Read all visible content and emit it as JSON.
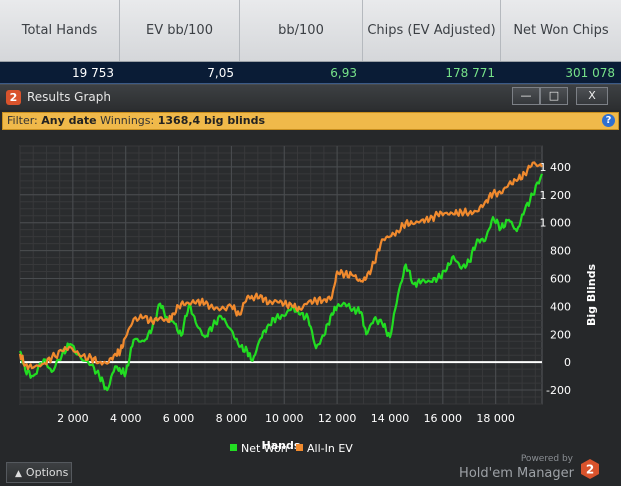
{
  "stats": {
    "headers": [
      "Total Hands",
      "EV bb/100",
      "bb/100",
      "Chips (EV Adjusted)",
      "Net Won Chips"
    ],
    "values": [
      "19 753",
      "7,05",
      "6,93",
      "178 771",
      "301 078"
    ]
  },
  "window": {
    "title": "Results Graph",
    "logo_glyph": "2",
    "minimize": "—",
    "maximize": "□",
    "close": "X"
  },
  "filter": {
    "label": "Filter:",
    "date": "Any date",
    "winnings_label": "Winnings:",
    "winnings_value": "1368,4 big blinds",
    "help": "?"
  },
  "bottom": {
    "options_label": "Options",
    "powered_by": "Powered by",
    "brand": "Hold'em Manager",
    "brand_logo_glyph": "2"
  },
  "colors": {
    "net_won": "#22dd22",
    "all_in_ev": "#f08a2e",
    "zero_line": "#ffffff",
    "grid": "#4a4d50",
    "plot_bg": "#2a2c2e"
  },
  "chart_data": {
    "type": "line",
    "xlabel": "Hands",
    "ylabel": "Big Blinds",
    "xlim": [
      0,
      19753
    ],
    "ylim": [
      -300,
      1550
    ],
    "x_ticks": [
      2000,
      4000,
      6000,
      8000,
      10000,
      12000,
      14000,
      16000,
      18000
    ],
    "x_tick_labels": [
      "2 000",
      "4 000",
      "6 000",
      "8 000",
      "10 000",
      "12 000",
      "14 000",
      "16 000",
      "18 000"
    ],
    "y_ticks": [
      -200,
      0,
      200,
      400,
      600,
      800,
      1000,
      1200,
      1400
    ],
    "y_tick_labels": [
      "-200",
      "0",
      "200",
      "400",
      "600",
      "800",
      "1 000",
      "1 200",
      "1 400"
    ],
    "grid": true,
    "legend_position": "bottom-center",
    "series": [
      {
        "name": "Net Won",
        "color": "#22dd22",
        "x": [
          0,
          200,
          500,
          900,
          1200,
          1600,
          1900,
          2300,
          2700,
          3000,
          3300,
          3600,
          3800,
          4000,
          4300,
          4700,
          5000,
          5300,
          5600,
          5800,
          6100,
          6400,
          6700,
          7000,
          7300,
          7600,
          8000,
          8300,
          8600,
          8800,
          9100,
          9400,
          9700,
          10000,
          10300,
          10600,
          10900,
          11200,
          11500,
          11800,
          12000,
          12300,
          12600,
          12900,
          13100,
          13400,
          13700,
          14000,
          14300,
          14600,
          14900,
          15200,
          15500,
          15800,
          16100,
          16400,
          16700,
          17000,
          17300,
          17600,
          17900,
          18200,
          18500,
          18800,
          19100,
          19400,
          19753
        ],
        "y": [
          80,
          -60,
          -100,
          20,
          -70,
          60,
          130,
          30,
          -20,
          -100,
          -200,
          -30,
          -60,
          -80,
          160,
          150,
          240,
          420,
          300,
          290,
          190,
          420,
          260,
          180,
          260,
          330,
          230,
          110,
          80,
          10,
          170,
          270,
          320,
          330,
          400,
          340,
          320,
          100,
          190,
          350,
          400,
          420,
          380,
          360,
          200,
          310,
          280,
          180,
          480,
          700,
          560,
          580,
          580,
          600,
          650,
          760,
          670,
          720,
          880,
          870,
          1040,
          960,
          1020,
          940,
          1090,
          1200,
          1350
        ]
      },
      {
        "name": "All-In EV",
        "color": "#f08a2e",
        "x": [
          0,
          200,
          500,
          900,
          1200,
          1600,
          1900,
          2300,
          2700,
          3000,
          3300,
          3600,
          3800,
          4000,
          4300,
          4700,
          5000,
          5300,
          5600,
          5800,
          6100,
          6400,
          6700,
          7000,
          7300,
          7600,
          8000,
          8300,
          8600,
          8800,
          9100,
          9400,
          9700,
          10000,
          10300,
          10600,
          10900,
          11200,
          11500,
          11800,
          12000,
          12300,
          12600,
          12900,
          13100,
          13400,
          13700,
          14000,
          14300,
          14600,
          14900,
          15200,
          15500,
          15800,
          16100,
          16400,
          16700,
          17000,
          17300,
          17600,
          17900,
          18200,
          18500,
          18800,
          19100,
          19400,
          19753
        ],
        "y": [
          60,
          -20,
          -40,
          -10,
          30,
          80,
          110,
          40,
          30,
          0,
          -10,
          60,
          80,
          180,
          310,
          320,
          290,
          320,
          290,
          350,
          420,
          420,
          440,
          420,
          390,
          380,
          400,
          340,
          470,
          460,
          480,
          420,
          440,
          420,
          400,
          380,
          430,
          440,
          450,
          460,
          650,
          630,
          620,
          580,
          600,
          710,
          880,
          900,
          940,
          1000,
          990,
          1020,
          1020,
          1060,
          1070,
          1060,
          1080,
          1070,
          1080,
          1150,
          1210,
          1210,
          1280,
          1300,
          1350,
          1430,
          1400
        ]
      }
    ]
  }
}
